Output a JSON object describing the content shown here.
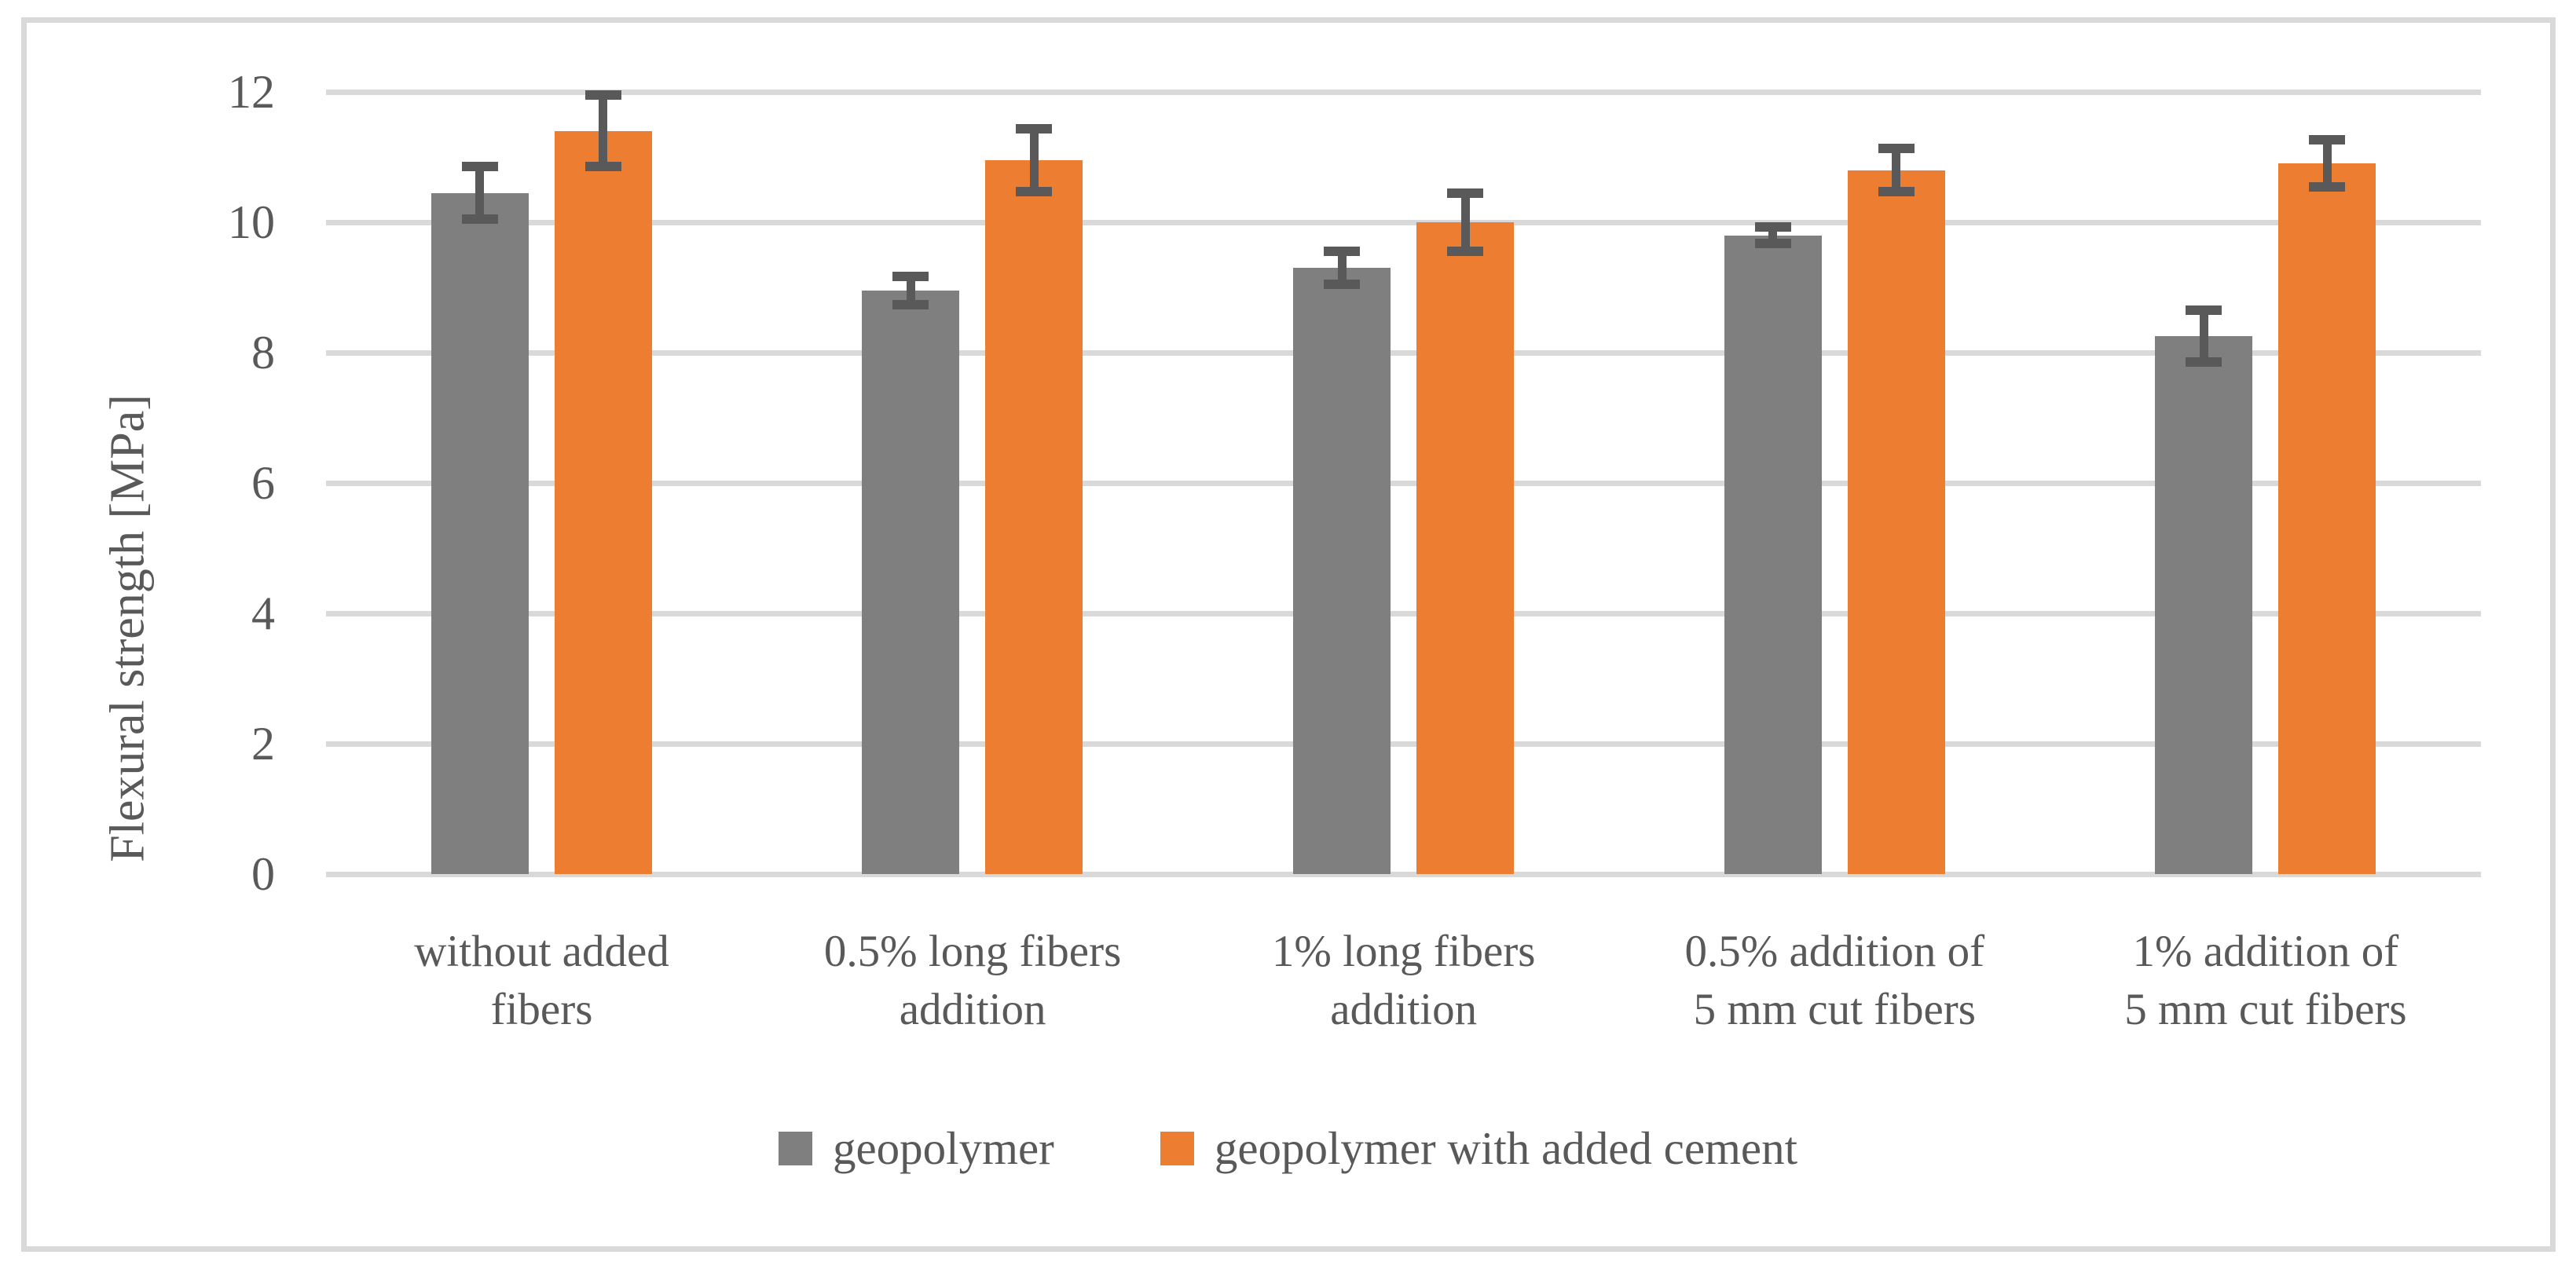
{
  "figure": {
    "background": "#ffffff",
    "border_color": "#d9d9d9"
  },
  "chart_data": {
    "type": "bar",
    "title": "",
    "xlabel": "",
    "ylabel": "Flexural strength [MPa]",
    "ylim": [
      0,
      12
    ],
    "yticks": [
      0,
      2,
      4,
      6,
      8,
      10,
      12
    ],
    "grid": true,
    "legend_position": "bottom-center",
    "gridline_color": "#d9d9d9",
    "error_bar_color": "#595959",
    "text_color": "#595959",
    "categories": [
      "without added fibers",
      "0.5% long fibers addition",
      "1% long fibers addition",
      "0.5% addition of 5 mm cut fibers",
      "1% addition of 5 mm cut fibers"
    ],
    "category_lines": [
      [
        "without added",
        "fibers"
      ],
      [
        "0.5% long fibers",
        "addition"
      ],
      [
        "1% long fibers",
        "addition"
      ],
      [
        "0.5% addition of",
        "5 mm cut fibers"
      ],
      [
        "1% addition of",
        "5 mm cut fibers"
      ]
    ],
    "series": [
      {
        "name": "geopolymer",
        "color": "#7f7f7f",
        "values": [
          10.45,
          8.95,
          9.3,
          9.8,
          8.25
        ],
        "errors": [
          0.4,
          0.22,
          0.25,
          0.13,
          0.4
        ]
      },
      {
        "name": "geopolymer with added cement",
        "color": "#ed7d31",
        "values": [
          11.4,
          10.95,
          10.0,
          10.8,
          10.9
        ],
        "errors": [
          0.55,
          0.48,
          0.45,
          0.33,
          0.36
        ]
      }
    ]
  }
}
